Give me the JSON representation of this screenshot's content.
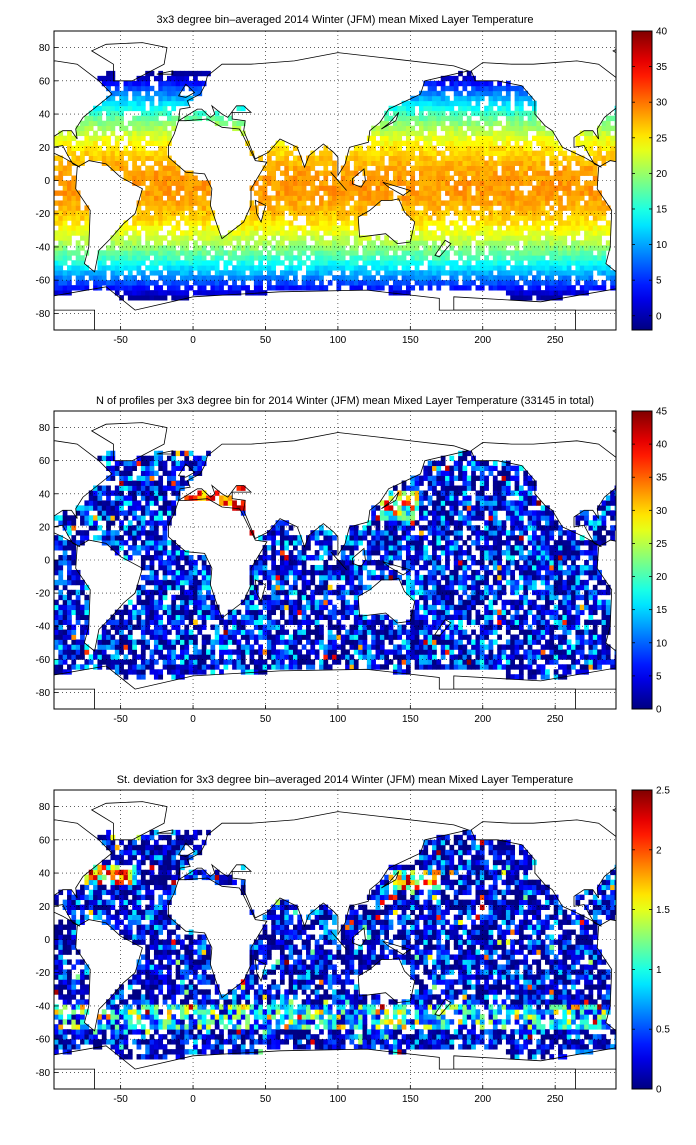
{
  "chart_data": [
    {
      "type": "heatmap",
      "title": "3x3 degree bin–averaged 2014 Winter (JFM) mean Mixed Layer Temperature",
      "xlabel": "",
      "ylabel": "",
      "x_ticks": [
        "-50",
        "0",
        "50",
        "100",
        "150",
        "200",
        "250"
      ],
      "y_ticks": [
        "80",
        "60",
        "40",
        "20",
        "0",
        "-20",
        "-40",
        "-60",
        "-80"
      ],
      "xlim": [
        -96,
        292
      ],
      "ylim": [
        -90,
        90
      ],
      "colorbar": {
        "min": -2,
        "max": 40,
        "ticks": [
          "40",
          "35",
          "30",
          "25",
          "20",
          "15",
          "10",
          "5",
          "0"
        ]
      },
      "grid": "dotted",
      "description": "Warm tropical values (25-30) between 30S and 30N, cooling poleward; cold (0-5) south of 55S and in the subpolar North Pacific."
    },
    {
      "type": "heatmap",
      "title": "N of profiles per 3x3 degree bin for 2014 Winter (JFM) mean Mixed Layer Temperature  (33145 in total)",
      "xlabel": "",
      "ylabel": "",
      "x_ticks": [
        "-50",
        "0",
        "50",
        "100",
        "150",
        "200",
        "250"
      ],
      "y_ticks": [
        "80",
        "60",
        "40",
        "20",
        "0",
        "-20",
        "-40",
        "-60",
        "-80"
      ],
      "xlim": [
        -96,
        292
      ],
      "ylim": [
        -90,
        90
      ],
      "colorbar": {
        "min": 0,
        "max": 45,
        "ticks": [
          "45",
          "40",
          "35",
          "30",
          "25",
          "20",
          "15",
          "10",
          "5",
          "0"
        ]
      },
      "grid": "dotted",
      "description": "Mostly 0-10 profiles per bin; local maxima (~40) in the Mediterranean, Red Sea, Arabian Sea and Kuroshio region."
    },
    {
      "type": "heatmap",
      "title": "St. deviation for 3x3 degree bin–averaged 2014 Winter (JFM) mean Mixed Layer Temperature",
      "xlabel": "",
      "ylabel": "",
      "x_ticks": [
        "-50",
        "0",
        "50",
        "100",
        "150",
        "200",
        "250"
      ],
      "y_ticks": [
        "80",
        "60",
        "40",
        "20",
        "0",
        "-20",
        "-40",
        "-60",
        "-80"
      ],
      "xlim": [
        -96,
        292
      ],
      "ylim": [
        -90,
        90
      ],
      "colorbar": {
        "min": 0,
        "max": 2.5,
        "ticks": [
          "2.5",
          "2",
          "1.5",
          "1",
          "0.5",
          "0"
        ]
      },
      "grid": "dotted",
      "description": "Mostly below 0.5; elevated values (1.5-2.5) in the Gulf Stream, Kuroshio and along 40-50S."
    }
  ]
}
